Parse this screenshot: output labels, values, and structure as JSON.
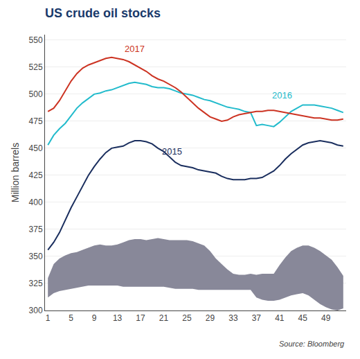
{
  "chart_data": {
    "type": "line",
    "title": "US crude oil stocks",
    "title_color": "#1a3a6b",
    "ylabel": "Million barrels",
    "source": "Source: Bloomberg",
    "x": [
      1,
      2,
      3,
      4,
      5,
      6,
      7,
      8,
      9,
      10,
      11,
      12,
      13,
      14,
      15,
      16,
      17,
      18,
      19,
      20,
      21,
      22,
      23,
      24,
      25,
      26,
      27,
      28,
      29,
      30,
      31,
      32,
      33,
      34,
      35,
      36,
      37,
      38,
      39,
      40,
      41,
      42,
      43,
      44,
      45,
      46,
      47,
      48,
      49,
      50,
      51,
      52
    ],
    "xlim": [
      0.5,
      52.5
    ],
    "xticks": [
      1,
      5,
      9,
      13,
      17,
      21,
      25,
      29,
      33,
      37,
      41,
      45,
      49
    ],
    "ylim": [
      300,
      555
    ],
    "yticks": [
      300,
      325,
      350,
      375,
      400,
      425,
      450,
      475,
      500,
      525,
      550
    ],
    "grid": true,
    "band": {
      "color": "#888899",
      "lower": [
        312,
        316,
        318,
        319,
        320,
        321,
        322,
        323,
        323,
        323,
        323,
        323,
        323,
        322,
        322,
        322,
        322,
        322,
        322,
        322,
        322,
        321,
        320,
        320,
        320,
        320,
        319,
        319,
        319,
        319,
        319,
        319,
        319,
        319,
        319,
        319,
        312,
        310,
        309,
        309,
        310,
        312,
        314,
        315,
        316,
        314,
        310,
        306,
        303,
        301,
        300,
        302
      ],
      "upper": [
        330,
        343,
        348,
        351,
        353,
        354,
        356,
        358,
        360,
        361,
        360,
        360,
        361,
        363,
        365,
        366,
        366,
        365,
        366,
        367,
        366,
        365,
        365,
        365,
        365,
        364,
        362,
        360,
        355,
        348,
        343,
        338,
        334,
        333,
        333,
        334,
        333,
        334,
        334,
        334,
        342,
        349,
        355,
        358,
        360,
        360,
        358,
        355,
        351,
        347,
        340,
        332
      ]
    },
    "series": [
      {
        "color": "#1a2e5e",
        "values": [
          356,
          363,
          372,
          384,
          395,
          405,
          415,
          425,
          433,
          440,
          446,
          450,
          451,
          452,
          455,
          457,
          457,
          456,
          454,
          450,
          447,
          442,
          437,
          434,
          433,
          432,
          430,
          429,
          428,
          427,
          424,
          422,
          421,
          421,
          421,
          422,
          422,
          423,
          426,
          429,
          434,
          440,
          445,
          449,
          453,
          455,
          456,
          457,
          456,
          455,
          453,
          452
        ]
      },
      {
        "color": "#22bbcc",
        "values": [
          453,
          462,
          468,
          473,
          480,
          487,
          492,
          496,
          500,
          501,
          503,
          504,
          506,
          508,
          510,
          511,
          510,
          509,
          507,
          506,
          506,
          505,
          503,
          501,
          500,
          499,
          497,
          495,
          494,
          492,
          490,
          488,
          487,
          486,
          484,
          483,
          471,
          472,
          471,
          470,
          474,
          479,
          484,
          487,
          490,
          490,
          490,
          489,
          488,
          487,
          485,
          483
        ]
      },
      {
        "color": "#cc3322",
        "values": [
          484,
          487,
          494,
          503,
          512,
          519,
          524,
          527,
          529,
          531,
          533,
          534,
          533,
          532,
          530,
          527,
          524,
          521,
          517,
          514,
          512,
          509,
          506,
          502,
          497,
          492,
          487,
          483,
          479,
          477,
          475,
          476,
          479,
          481,
          482,
          483,
          484,
          484,
          485,
          485,
          484,
          483,
          482,
          481,
          480,
          479,
          478,
          478,
          477,
          476,
          476,
          477
        ]
      }
    ],
    "annotations": [
      {
        "text": "2017",
        "x": 14,
        "y": 536,
        "color": "#cc3322"
      },
      {
        "text": "2016",
        "x": 39.5,
        "y": 493,
        "color": "#22bbcc"
      },
      {
        "text": "2015",
        "x": 20.5,
        "y": 441,
        "color": "#1a2e5e"
      }
    ]
  }
}
